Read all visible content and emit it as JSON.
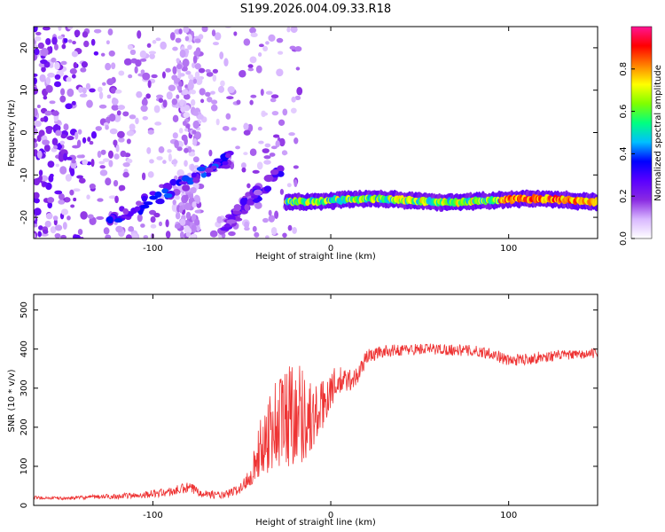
{
  "title": "S199.2026.004.09.33.R18",
  "chart_data": [
    {
      "type": "heatmap",
      "xlabel": "Height of straight line (km)",
      "ylabel": "Frequency (Hz)",
      "xlim": [
        -167,
        150
      ],
      "ylim": [
        -25,
        25
      ],
      "x_ticks": [
        -100,
        0,
        100
      ],
      "y_ticks": [
        20,
        10,
        0,
        -10,
        -20
      ],
      "colorbar": {
        "label": "Normalized spectral amplitude",
        "range": [
          0,
          1
        ],
        "ticks": [
          0.0,
          0.2,
          0.4,
          0.6,
          0.8
        ],
        "colors": [
          "#ffffff",
          "#d9b8ff",
          "#8a2be2",
          "#5a00ff",
          "#0000ff",
          "#00bfff",
          "#00ff80",
          "#7fff00",
          "#ffff00",
          "#ff8000",
          "#ff0000",
          "#ff1493"
        ]
      },
      "features": [
        {
          "name": "flat line",
          "x_range": [
            -25,
            150
          ],
          "frequency": -16,
          "amplitude": 0.6
        },
        {
          "name": "rising streak A",
          "x_range": [
            -125,
            -55
          ],
          "frequency_range": [
            -21,
            -6
          ],
          "amplitude": 0.3
        },
        {
          "name": "rising streak B",
          "x_range": [
            -62,
            -28
          ],
          "frequency_range": [
            -23,
            -9
          ],
          "amplitude": 0.25
        }
      ]
    },
    {
      "type": "line",
      "xlabel": "Height of straight line (km)",
      "ylabel": "SNR (10 * v/v)",
      "xlim": [
        -167,
        150
      ],
      "ylim": [
        0,
        540
      ],
      "x_ticks": [
        -100,
        0,
        100
      ],
      "y_ticks": [
        0,
        100,
        200,
        300,
        400,
        500
      ],
      "series": [
        {
          "name": "SNR",
          "color": "#ee3333",
          "x": [
            -167,
            -150,
            -130,
            -110,
            -100,
            -90,
            -80,
            -70,
            -60,
            -50,
            -45,
            -40,
            -35,
            -30,
            -25,
            -20,
            -15,
            -10,
            -5,
            0,
            5,
            10,
            15,
            20,
            30,
            40,
            50,
            60,
            70,
            80,
            90,
            95,
            100,
            110,
            120,
            130,
            140,
            150
          ],
          "values": [
            20,
            18,
            22,
            25,
            30,
            35,
            45,
            30,
            25,
            45,
            80,
            140,
            190,
            210,
            230,
            250,
            230,
            220,
            250,
            300,
            315,
            320,
            330,
            380,
            395,
            398,
            400,
            400,
            398,
            395,
            390,
            380,
            370,
            375,
            380,
            385,
            385,
            390
          ],
          "noise": [
            4,
            4,
            6,
            8,
            10,
            12,
            15,
            10,
            10,
            15,
            30,
            70,
            110,
            130,
            140,
            150,
            120,
            90,
            70,
            50,
            40,
            30,
            25,
            20,
            15,
            15,
            15,
            15,
            15,
            15,
            15,
            15,
            15,
            15,
            15,
            12,
            12,
            12
          ]
        }
      ]
    }
  ]
}
